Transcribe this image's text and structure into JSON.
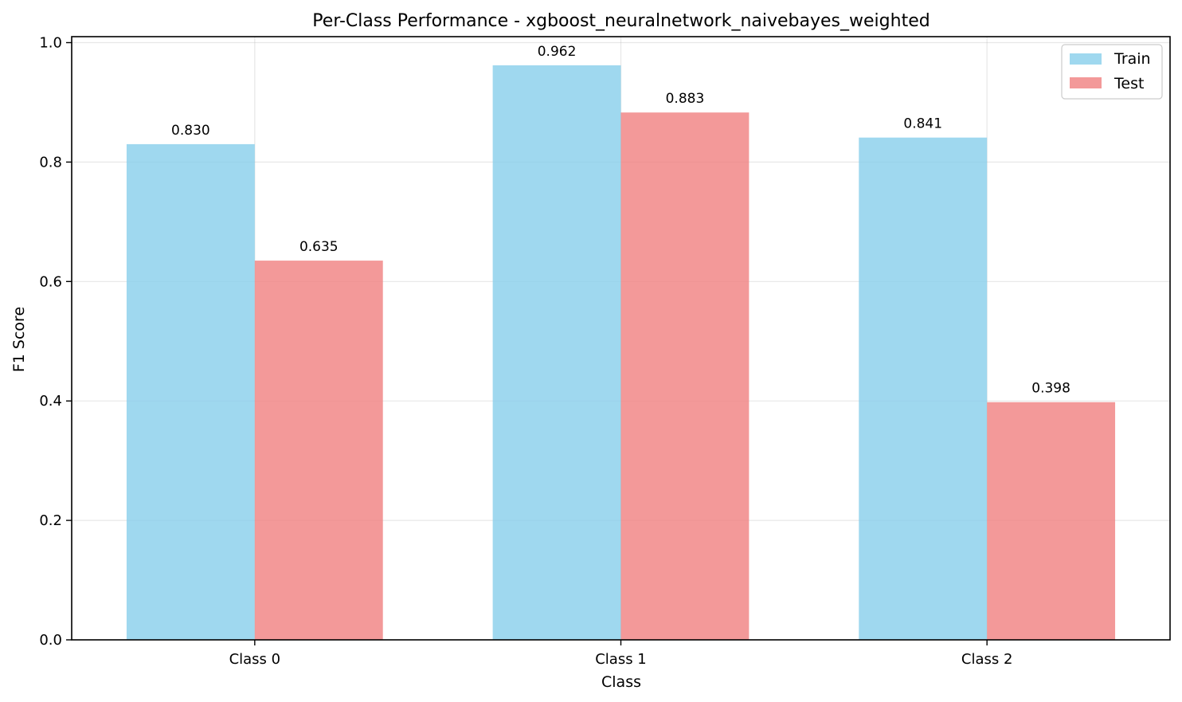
{
  "chart_data": {
    "type": "bar",
    "title": "Per-Class Performance - xgboost_neuralnetwork_naivebayes_weighted",
    "xlabel": "Class",
    "ylabel": "F1 Score",
    "categories": [
      "Class 0",
      "Class 1",
      "Class 2"
    ],
    "series": [
      {
        "name": "Train",
        "values": [
          0.83,
          0.962,
          0.841
        ],
        "labels": [
          "0.830",
          "0.962",
          "0.841"
        ],
        "color": "#87ceeb"
      },
      {
        "name": "Test",
        "values": [
          0.635,
          0.883,
          0.398
        ],
        "labels": [
          "0.635",
          "0.883",
          "0.398"
        ],
        "color": "#f08080"
      }
    ],
    "ylim": [
      0,
      1.01
    ],
    "yticks": [
      0.0,
      0.2,
      0.4,
      0.6,
      0.8,
      1.0
    ],
    "ytick_labels": [
      "0.0",
      "0.2",
      "0.4",
      "0.6",
      "0.8",
      "1.0"
    ],
    "grid": true,
    "legend_position": "top-right"
  }
}
